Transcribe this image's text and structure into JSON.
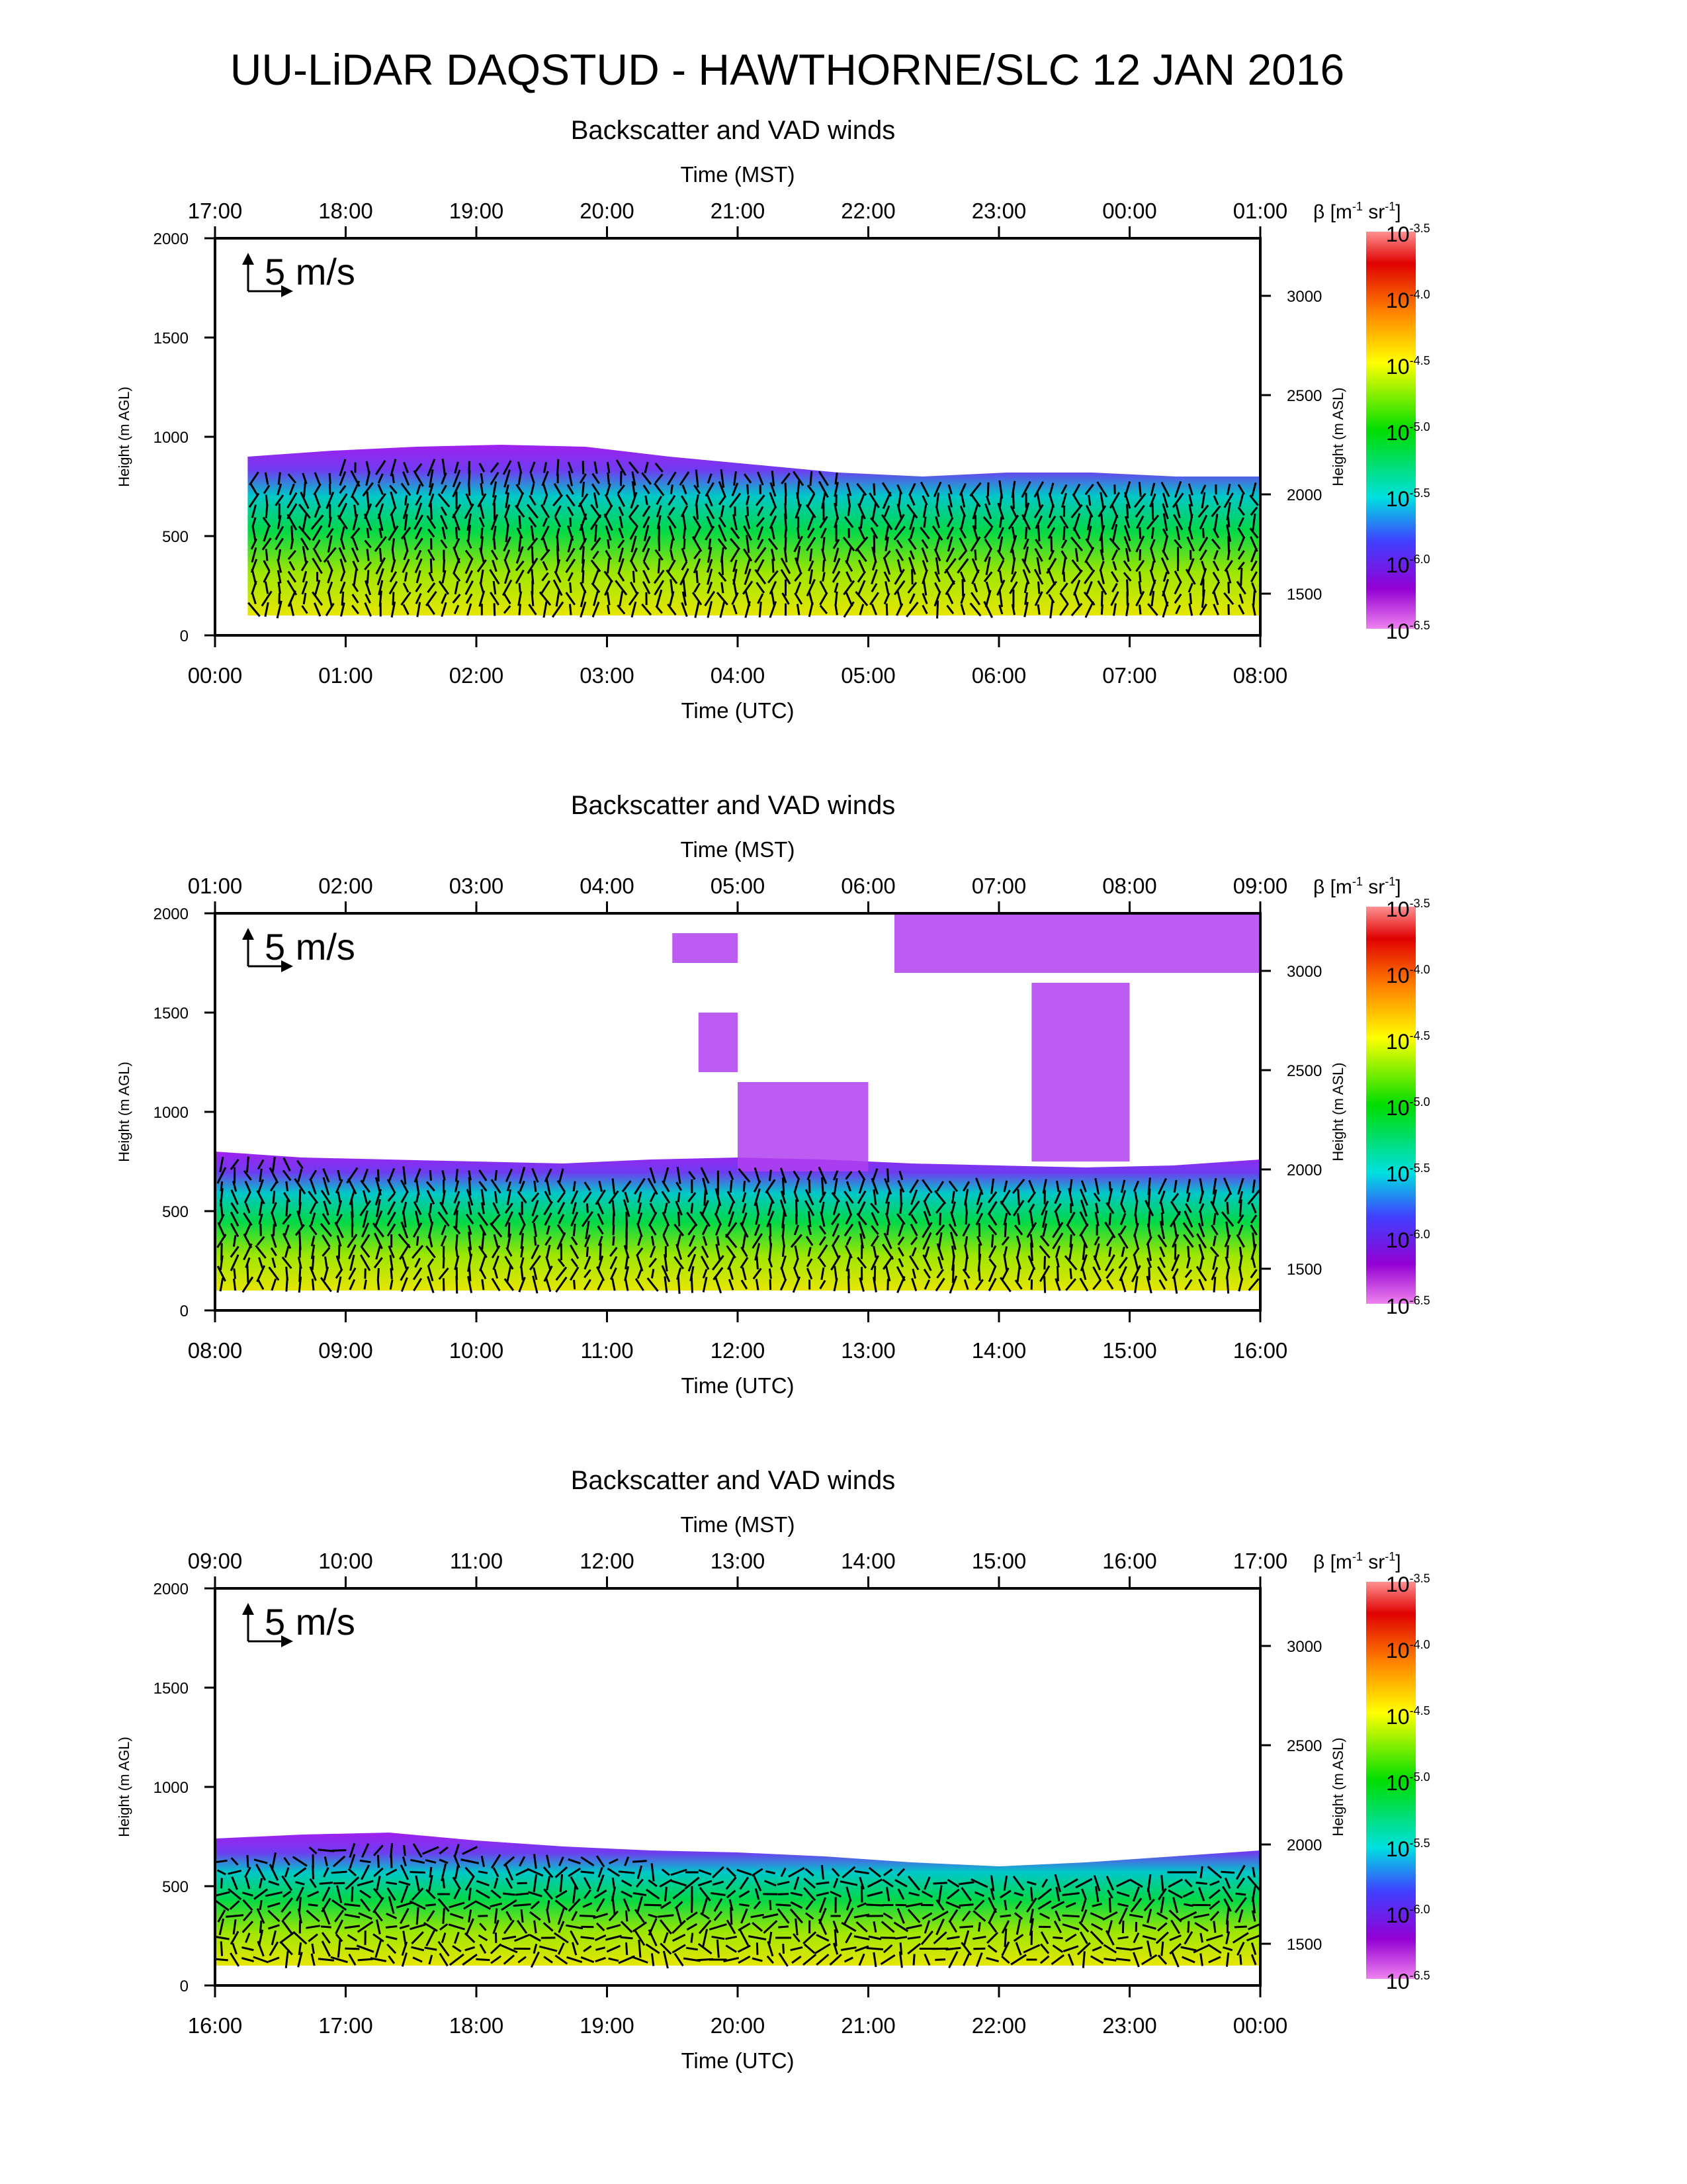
{
  "title": "UU-LiDAR DAQSTUD - HAWTHORNE/SLC 12 JAN 2016",
  "scale_arrow_label": "5 m/s",
  "colors": {
    "text": "#000000",
    "arrow": "#000000",
    "colorbar_stops": [
      "#ee82ee",
      "#9400d3",
      "#4040ff",
      "#00e0e0",
      "#00dd00",
      "#ffff00",
      "#ff8000",
      "#e00000",
      "#ff9090"
    ]
  },
  "chart_data": [
    {
      "type": "heatmap",
      "title": "Backscatter and VAD winds",
      "xlabel": "Time (UTC)",
      "x2label": "Time (MST)",
      "ylabel": "Height (m AGL)",
      "y2label": "Height (m ASL)",
      "x_ticks": [
        "00:00",
        "01:00",
        "02:00",
        "03:00",
        "04:00",
        "05:00",
        "06:00",
        "07:00",
        "08:00"
      ],
      "x2_ticks": [
        "17:00",
        "18:00",
        "19:00",
        "20:00",
        "21:00",
        "22:00",
        "23:00",
        "00:00",
        "01:00"
      ],
      "y_ticks": [
        0,
        500,
        1000,
        1500,
        2000
      ],
      "y2_ticks": [
        1500,
        2000,
        2500,
        3000
      ],
      "ylim": [
        0,
        2000
      ],
      "xlim_hours": [
        0,
        8
      ],
      "cbar_label_parts": [
        "β [m",
        "-1",
        " sr",
        "-1",
        "]"
      ],
      "cbar_exponents": [
        "-3.5",
        "-4.0",
        "-4.5",
        "-5.0",
        "-5.5",
        "-6.0",
        "-6.5"
      ],
      "cbar_base": "10",
      "layer_top_m": [
        900,
        930,
        950,
        960,
        950,
        900,
        860,
        820,
        800,
        820,
        820,
        800,
        800
      ],
      "layer_bottom_m": 100,
      "data_start_hour": 0.25,
      "wind_arrows": "dense VAD wind barbs throughout boundary layer"
    },
    {
      "type": "heatmap",
      "title": "Backscatter and VAD winds",
      "xlabel": "Time (UTC)",
      "x2label": "Time (MST)",
      "ylabel": "Height (m AGL)",
      "y2label": "Height (m ASL)",
      "x_ticks": [
        "08:00",
        "09:00",
        "10:00",
        "11:00",
        "12:00",
        "13:00",
        "14:00",
        "15:00",
        "16:00"
      ],
      "x2_ticks": [
        "01:00",
        "02:00",
        "03:00",
        "04:00",
        "05:00",
        "06:00",
        "07:00",
        "08:00",
        "09:00"
      ],
      "y_ticks": [
        0,
        500,
        1000,
        1500,
        2000
      ],
      "y2_ticks": [
        1500,
        2000,
        2500,
        3000
      ],
      "ylim": [
        0,
        2000
      ],
      "xlim_hours": [
        8,
        16
      ],
      "cbar_label_parts": [
        "β [m",
        "-1",
        " sr",
        "-1",
        "]"
      ],
      "cbar_exponents": [
        "-3.5",
        "-4.0",
        "-4.5",
        "-5.0",
        "-5.5",
        "-6.0",
        "-6.5"
      ],
      "cbar_base": "10",
      "layer_top_m": [
        800,
        770,
        760,
        750,
        740,
        760,
        770,
        760,
        740,
        730,
        720,
        730,
        760
      ],
      "layer_bottom_m": 100,
      "data_start_hour": 8.0,
      "elevated_layers": [
        {
          "h0": 12.0,
          "h1": 13.0,
          "bottom_m": 700,
          "top_m": 1150
        },
        {
          "h0": 13.2,
          "h1": 16.0,
          "bottom_m": 1700,
          "top_m": 2000
        },
        {
          "h0": 14.25,
          "h1": 15.0,
          "bottom_m": 750,
          "top_m": 1650
        },
        {
          "h0": 11.7,
          "h1": 12.0,
          "bottom_m": 1200,
          "top_m": 1500
        },
        {
          "h0": 11.5,
          "h1": 12.0,
          "bottom_m": 1750,
          "top_m": 1900
        }
      ],
      "wind_arrows": "dense VAD wind barbs throughout boundary layer"
    },
    {
      "type": "heatmap",
      "title": "Backscatter and VAD winds",
      "xlabel": "Time (UTC)",
      "x2label": "Time (MST)",
      "ylabel": "Height (m AGL)",
      "y2label": "Height (m ASL)",
      "x_ticks": [
        "16:00",
        "17:00",
        "18:00",
        "19:00",
        "20:00",
        "21:00",
        "22:00",
        "23:00",
        "00:00"
      ],
      "x2_ticks": [
        "09:00",
        "10:00",
        "11:00",
        "12:00",
        "13:00",
        "14:00",
        "15:00",
        "16:00",
        "17:00"
      ],
      "y_ticks": [
        0,
        500,
        1000,
        1500,
        2000
      ],
      "y2_ticks": [
        1500,
        2000,
        2500,
        3000
      ],
      "ylim": [
        0,
        2000
      ],
      "xlim_hours": [
        16,
        24
      ],
      "cbar_label_parts": [
        "β [m",
        "-1",
        " sr",
        "-1",
        "]"
      ],
      "cbar_exponents": [
        "-3.5",
        "-4.0",
        "-4.5",
        "-5.0",
        "-5.5",
        "-6.0",
        "-6.5"
      ],
      "cbar_base": "10",
      "layer_top_m": [
        740,
        760,
        770,
        730,
        700,
        680,
        670,
        650,
        620,
        600,
        620,
        650,
        680
      ],
      "layer_bottom_m": 100,
      "data_start_hour": 16.0,
      "wind_arrows": "dense VAD wind barbs throughout boundary layer"
    }
  ]
}
